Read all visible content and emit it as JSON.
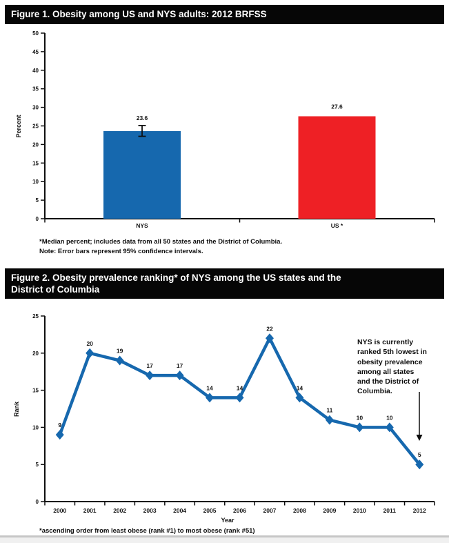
{
  "figure1": {
    "title": "Figure 1. Obesity among US and NYS adults: 2012 BRFSS"
  },
  "figure2": {
    "title_lines": [
      "Figure 2. Obesity prevalence ranking* of NYS among the US states and the",
      "District of Columbia"
    ],
    "annotation_lines": [
      "NYS is currently",
      "ranked 5th lowest in",
      "obesity prevalence",
      "among all states",
      "and the District of",
      "Columbia."
    ]
  },
  "chart_data": [
    {
      "type": "bar",
      "title": "Figure 1. Obesity among US and NYS adults: 2012 BRFSS",
      "categories": [
        "NYS",
        "US *"
      ],
      "values": [
        23.6,
        27.6
      ],
      "data_labels": [
        "23.6",
        "27.6"
      ],
      "bar_colors": [
        "#1668ae",
        "#ee2025"
      ],
      "error_bars": [
        {
          "index": 0,
          "low": 22.2,
          "high": 25.1
        }
      ],
      "xlabel": "",
      "ylabel": "Percent",
      "ylim": [
        0,
        50
      ],
      "ytick_interval": 5,
      "legend": "none",
      "grid": false,
      "footnotes": [
        "*Median percent; includes data from all 50 states and the District of Columbia.",
        "Note: Error bars represent 95% confidence intervals."
      ]
    },
    {
      "type": "line",
      "title": "Figure 2. Obesity prevalence ranking* of NYS among the US states and the District of Columbia",
      "x": [
        2000,
        2001,
        2002,
        2003,
        2004,
        2005,
        2006,
        2007,
        2008,
        2009,
        2010,
        2011,
        2012
      ],
      "values": [
        9,
        20,
        19,
        17,
        17,
        14,
        14,
        22,
        14,
        11,
        10,
        10,
        5
      ],
      "line_color": "#1668ae",
      "marker": "diamond",
      "xlabel": "Year",
      "ylabel": "Rank",
      "ylim": [
        0,
        25
      ],
      "ytick_interval": 5,
      "legend": "none",
      "grid": false,
      "annotation": "NYS is currently ranked 5th lowest in obesity prevalence among all states and the District of Columbia.",
      "annotation_points_to": {
        "x": 2012,
        "value": 5
      },
      "footnote": "*ascending order from least obese (rank #1) to most obese (rank #51)"
    }
  ]
}
